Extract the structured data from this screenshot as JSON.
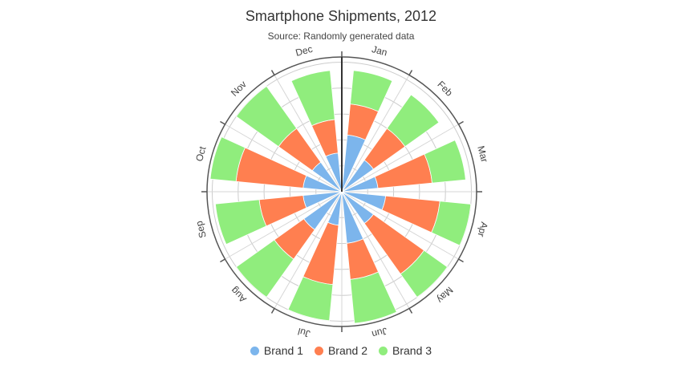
{
  "chart_data": {
    "type": "bar",
    "polar": true,
    "stacked": true,
    "title": "Smartphone Shipments, 2012",
    "subtitle": "Source: Randomly generated data",
    "categories": [
      "Jan",
      "Feb",
      "Mar",
      "Apr",
      "May",
      "Jun",
      "Jul",
      "Aug",
      "Sep",
      "Oct",
      "Nov",
      "Dec"
    ],
    "radial_max": 5.2,
    "series": [
      {
        "name": "Brand 1",
        "color": "#7cb5ec",
        "values": [
          2.2,
          1.5,
          1.4,
          1.7,
          1.5,
          2.0,
          1.3,
          1.8,
          1.5,
          1.5,
          1.4,
          1.5
        ]
      },
      {
        "name": "Brand 2",
        "color": "#ff7f50",
        "values": [
          1.2,
          1.5,
          2.1,
          2.1,
          2.4,
          1.4,
          2.3,
          1.4,
          1.7,
          2.6,
          1.6,
          1.3
        ]
      },
      {
        "name": "Brand 3",
        "color": "#90ed7d",
        "values": [
          1.3,
          1.6,
          1.3,
          1.2,
          1.1,
          1.7,
          1.4,
          1.8,
          1.7,
          1.0,
          2.0,
          1.9
        ]
      }
    ]
  }
}
